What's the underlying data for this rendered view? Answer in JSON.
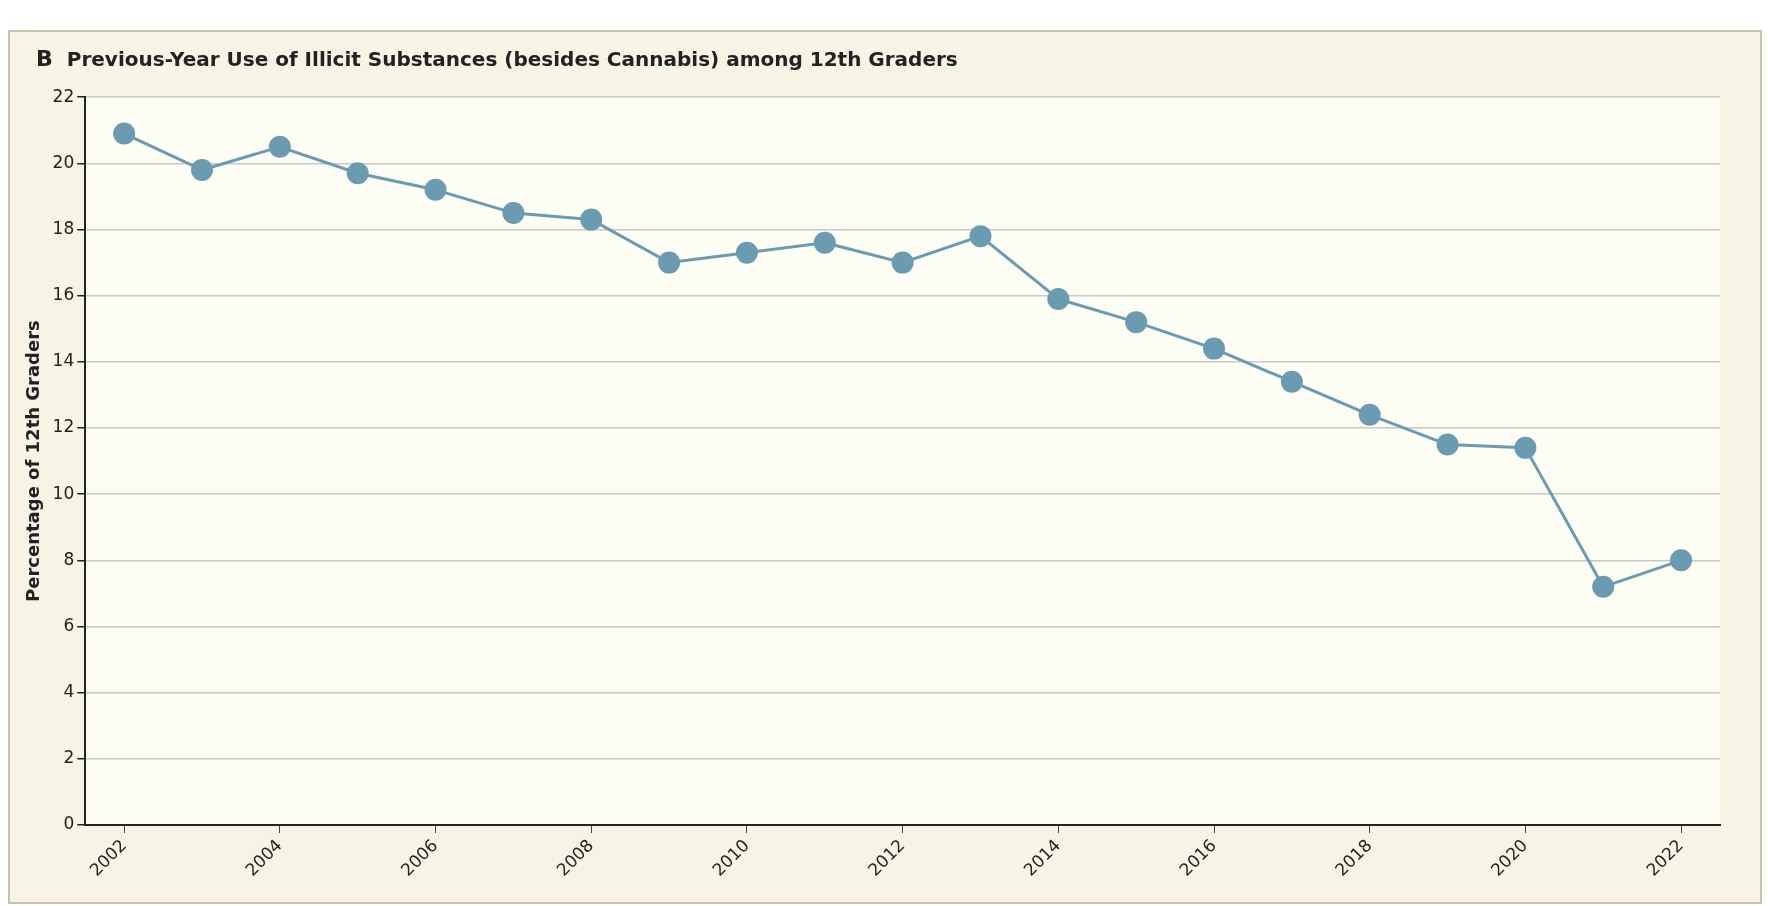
{
  "chart_data": {
    "type": "line",
    "title": "Previous-Year Use of Illicit Substances (besides Cannabis) among 12th Graders",
    "annotations": [
      "B"
    ],
    "ylabel": "Percentage of 12th Graders",
    "x": [
      2002,
      2003,
      2004,
      2005,
      2006,
      2007,
      2008,
      2009,
      2010,
      2011,
      2012,
      2013,
      2014,
      2015,
      2016,
      2017,
      2018,
      2019,
      2020,
      2021,
      2022
    ],
    "series": [
      {
        "color": "#6b9bb0",
        "values": [
          20.9,
          19.8,
          20.5,
          19.7,
          19.2,
          18.5,
          18.3,
          17.0,
          17.3,
          17.6,
          17.0,
          17.8,
          15.9,
          15.2,
          14.4,
          13.4,
          12.4,
          11.5,
          11.4,
          7.2,
          8.0
        ]
      }
    ],
    "xlim": [
      2001.5,
      2022.5
    ],
    "xticks": [
      2002,
      2004,
      2006,
      2008,
      2010,
      2012,
      2014,
      2016,
      2018,
      2020,
      2022
    ],
    "ylim": [
      0,
      22
    ],
    "yticks": [
      0,
      2,
      4,
      6,
      8,
      10,
      12,
      14,
      16,
      18,
      20,
      22
    ],
    "grid": "y",
    "legend": false,
    "marker": "circle",
    "line_style": "solid"
  }
}
